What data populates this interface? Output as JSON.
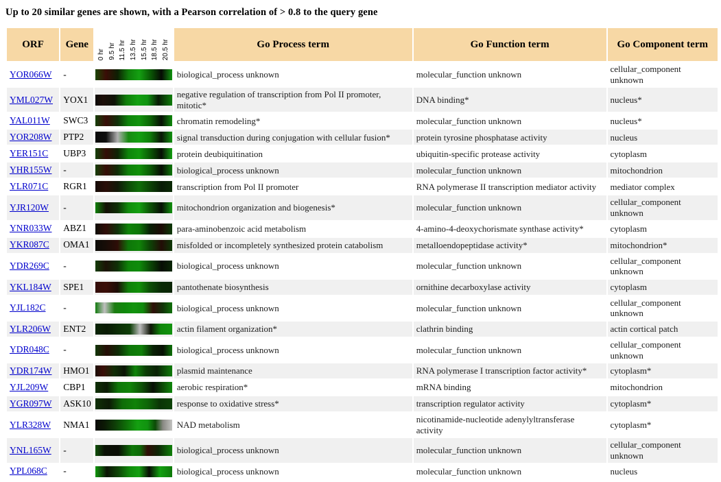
{
  "title": "Up to 20 similar genes are shown, with a Pearson correlation of > 0.8 to the query gene",
  "colors": {
    "header_bg": "#F7D8A5",
    "row_stripe_bg": "#F0F0F0",
    "link_blue": "#0000CC",
    "heatmap_missing_gray": "#BDBDBD",
    "heatmap_induced_green": "#14A011",
    "heatmap_repressed_red": "#3A0D08"
  },
  "table": {
    "headers": {
      "orf": "ORF",
      "gene": "Gene",
      "process": "Go Process term",
      "function": "Go Function term",
      "component": "Go Component term"
    },
    "time_labels": [
      "0 hr",
      "9.5 hr",
      "11.5 hr",
      "13.5 hr",
      "15.5 hr",
      "18.5 hr",
      "20.5 hr"
    ],
    "rows": [
      {
        "orf": "YOR066W",
        "gene": "-",
        "process": "biological_process unknown",
        "function": "molecular_function unknown",
        "component": "cellular_component unknown",
        "heatmap": [
          [
            0,
            "#1b4403"
          ],
          [
            14,
            "#3a0d07"
          ],
          [
            29,
            "#0d2003"
          ],
          [
            43,
            "#0f7d0a"
          ],
          [
            57,
            "#14a012"
          ],
          [
            71,
            "#0a5c05"
          ],
          [
            86,
            "#060a04"
          ],
          [
            100,
            "#11930f"
          ]
        ]
      },
      {
        "orf": "YML027W",
        "gene": "YOX1",
        "process": "negative regulation of transcription from Pol II promoter, mitotic*",
        "function": "DNA binding*",
        "component": "nucleus*",
        "heatmap": [
          [
            0,
            "#0d0a06"
          ],
          [
            10,
            "#1d0e08"
          ],
          [
            25,
            "#0e1206"
          ],
          [
            40,
            "#0f7c09"
          ],
          [
            55,
            "#13a011"
          ],
          [
            68,
            "#0f9210"
          ],
          [
            82,
            "#081a05"
          ],
          [
            100,
            "#0e7e09"
          ]
        ]
      },
      {
        "orf": "YAL011W",
        "gene": "SWC3",
        "process": "chromatin remodeling*",
        "function": "molecular_function unknown",
        "component": "nucleus*",
        "heatmap": [
          [
            0,
            "#16400a"
          ],
          [
            14,
            "#390d08"
          ],
          [
            29,
            "#11300a"
          ],
          [
            43,
            "#0e840b"
          ],
          [
            57,
            "#12940e"
          ],
          [
            71,
            "#0c6606"
          ],
          [
            86,
            "#070f05"
          ],
          [
            100,
            "#0f8a0c"
          ]
        ]
      },
      {
        "orf": "YOR208W",
        "gene": "PTP2",
        "process": "signal transduction during conjugation with cellular fusion*",
        "function": "protein tyrosine phosphatase activity",
        "component": "nucleus",
        "heatmap": [
          [
            0,
            "#090909"
          ],
          [
            14,
            "#0e0e0e"
          ],
          [
            29,
            "#b0b0b0"
          ],
          [
            43,
            "#188a12"
          ],
          [
            57,
            "#13a011"
          ],
          [
            71,
            "#0e7e0a"
          ],
          [
            86,
            "#0a1406"
          ],
          [
            100,
            "#10930e"
          ]
        ]
      },
      {
        "orf": "YER151C",
        "gene": "UBP3",
        "process": "protein deubiquitination",
        "function": "ubiquitin-specific protease activity",
        "component": "cytoplasm",
        "heatmap": [
          [
            0,
            "#15400a"
          ],
          [
            14,
            "#350d07"
          ],
          [
            29,
            "#0e2405"
          ],
          [
            43,
            "#0e850b"
          ],
          [
            57,
            "#12990e"
          ],
          [
            71,
            "#0a5a05"
          ],
          [
            86,
            "#060d04"
          ],
          [
            100,
            "#14a011"
          ]
        ]
      },
      {
        "orf": "YHR155W",
        "gene": "-",
        "process": "biological_process unknown",
        "function": "molecular_function unknown",
        "component": "mitochondrion",
        "heatmap": [
          [
            0,
            "#163e09"
          ],
          [
            14,
            "#370d07"
          ],
          [
            29,
            "#102c07"
          ],
          [
            43,
            "#0e8009"
          ],
          [
            57,
            "#119009"
          ],
          [
            71,
            "#0b5c05"
          ],
          [
            86,
            "#070c04"
          ],
          [
            100,
            "#0e7809"
          ]
        ]
      },
      {
        "orf": "YLR071C",
        "gene": "RGR1",
        "process": "transcription from Pol II promoter",
        "function": "RNA polymerase II transcription mediator activity",
        "component": "mediator complex",
        "heatmap": [
          [
            0,
            "#150b06"
          ],
          [
            14,
            "#2a0d08"
          ],
          [
            29,
            "#111808"
          ],
          [
            43,
            "#0d4a07"
          ],
          [
            57,
            "#0f6e08"
          ],
          [
            71,
            "#0c4406"
          ],
          [
            86,
            "#081a05"
          ],
          [
            100,
            "#0a2a05"
          ]
        ]
      },
      {
        "orf": "YJR120W",
        "gene": "-",
        "process": "mitochondrion organization and biogenesis*",
        "function": "molecular_function unknown",
        "component": "cellular_component unknown",
        "heatmap": [
          [
            0,
            "#108009"
          ],
          [
            14,
            "#141006"
          ],
          [
            29,
            "#0e2e06"
          ],
          [
            43,
            "#108c0c"
          ],
          [
            57,
            "#14a011"
          ],
          [
            71,
            "#0c5406"
          ],
          [
            86,
            "#070e04"
          ],
          [
            100,
            "#11930e"
          ]
        ]
      },
      {
        "orf": "YNR033W",
        "gene": "ABZ1",
        "process": "para-aminobenzoic acid metabolism",
        "function": "4-amino-4-deoxychorismate synthase activity*",
        "component": "cytoplasm",
        "heatmap": [
          [
            0,
            "#100e07"
          ],
          [
            14,
            "#300d07"
          ],
          [
            29,
            "#10320a"
          ],
          [
            43,
            "#0f8409"
          ],
          [
            57,
            "#0e7608"
          ],
          [
            71,
            "#092005"
          ],
          [
            86,
            "#1c0a05"
          ],
          [
            100,
            "#0c3a06"
          ]
        ]
      },
      {
        "orf": "YKR087C",
        "gene": "OMA1",
        "process": "misfolded or incompletely synthesized protein catabolism",
        "function": "metalloendopeptidase activity*",
        "component": "mitochondrion*",
        "heatmap": [
          [
            0,
            "#0c0c07"
          ],
          [
            14,
            "#180d07"
          ],
          [
            29,
            "#2e0d07"
          ],
          [
            43,
            "#0e7609"
          ],
          [
            57,
            "#108409"
          ],
          [
            71,
            "#0d4406"
          ],
          [
            86,
            "#220c06"
          ],
          [
            100,
            "#0d3806"
          ]
        ]
      },
      {
        "orf": "YDR269C",
        "gene": "-",
        "process": "biological_process unknown",
        "function": "molecular_function unknown",
        "component": "cellular_component unknown",
        "heatmap": [
          [
            0,
            "#143c08"
          ],
          [
            14,
            "#1c1206"
          ],
          [
            29,
            "#0f3006"
          ],
          [
            43,
            "#0f8409"
          ],
          [
            57,
            "#0f8c0a"
          ],
          [
            71,
            "#0b4a05"
          ],
          [
            86,
            "#070d04"
          ],
          [
            100,
            "#0a2605"
          ]
        ]
      },
      {
        "orf": "YKL184W",
        "gene": "SPE1",
        "process": "pantothenate biosynthesis",
        "function": "ornithine decarboxylase activity",
        "component": "cytoplasm",
        "heatmap": [
          [
            0,
            "#320d08"
          ],
          [
            14,
            "#3c0e08"
          ],
          [
            29,
            "#1c0c06"
          ],
          [
            43,
            "#0f8009"
          ],
          [
            57,
            "#119009"
          ],
          [
            71,
            "#0c4e06"
          ],
          [
            86,
            "#092805"
          ],
          [
            100,
            "#0a2405"
          ]
        ]
      },
      {
        "orf": "YJL182C",
        "gene": "-",
        "process": "biological_process unknown",
        "function": "molecular_function unknown",
        "component": "cellular_component unknown",
        "heatmap": [
          [
            0,
            "#127a0d"
          ],
          [
            12,
            "#bfbfbf"
          ],
          [
            25,
            "#1c7c12"
          ],
          [
            38,
            "#0f880b"
          ],
          [
            50,
            "#12930e"
          ],
          [
            62,
            "#108a0c"
          ],
          [
            75,
            "#2e0f08"
          ],
          [
            88,
            "#113408"
          ],
          [
            100,
            "#0f7009"
          ]
        ]
      },
      {
        "orf": "YLR206W",
        "gene": "ENT2",
        "process": "actin filament organization*",
        "function": "clathrin binding",
        "component": "actin cortical patch",
        "heatmap": [
          [
            0,
            "#0b2405"
          ],
          [
            15,
            "#091a04"
          ],
          [
            30,
            "#0c2e06"
          ],
          [
            45,
            "#0e3e07"
          ],
          [
            58,
            "#bdbdbd"
          ],
          [
            72,
            "#0e1406"
          ],
          [
            85,
            "#0f860b"
          ],
          [
            100,
            "#12930e"
          ]
        ]
      },
      {
        "orf": "YDR048C",
        "gene": "-",
        "process": "biological_process unknown",
        "function": "molecular_function unknown",
        "component": "cellular_component unknown",
        "heatmap": [
          [
            0,
            "#123608"
          ],
          [
            15,
            "#260d06"
          ],
          [
            30,
            "#0e2c06"
          ],
          [
            45,
            "#0e7609"
          ],
          [
            60,
            "#0f8009"
          ],
          [
            75,
            "#092205"
          ],
          [
            88,
            "#070f04"
          ],
          [
            100,
            "#0e7209"
          ]
        ]
      },
      {
        "orf": "YDR174W",
        "gene": "HMO1",
        "process": "plasmid maintenance",
        "function": "RNA polymerase I transcription factor activity*",
        "component": "cytoplasm*",
        "heatmap": [
          [
            0,
            "#1c0f07"
          ],
          [
            10,
            "#3a0d08"
          ],
          [
            25,
            "#0f2e06"
          ],
          [
            38,
            "#0a1205"
          ],
          [
            52,
            "#0f8409"
          ],
          [
            66,
            "#0c3c06"
          ],
          [
            80,
            "#0a2205"
          ],
          [
            100,
            "#0f7c09"
          ]
        ]
      },
      {
        "orf": "YJL209W",
        "gene": "CBP1",
        "process": "aerobic respiration*",
        "function": "mRNA binding",
        "component": "mitochondrion",
        "heatmap": [
          [
            0,
            "#103006"
          ],
          [
            15,
            "#0b1a05"
          ],
          [
            30,
            "#0e7809"
          ],
          [
            45,
            "#108409"
          ],
          [
            60,
            "#0d5206"
          ],
          [
            75,
            "#070f04"
          ],
          [
            88,
            "#0c4c06"
          ],
          [
            100,
            "#10880c"
          ]
        ]
      },
      {
        "orf": "YGR097W",
        "gene": "ASK10",
        "process": "response to oxidative stress*",
        "function": "transcription regulator activity",
        "component": "cytoplasm*",
        "heatmap": [
          [
            0,
            "#0f3007"
          ],
          [
            18,
            "#0b1a05"
          ],
          [
            35,
            "#0e6c08"
          ],
          [
            52,
            "#108209"
          ],
          [
            68,
            "#0e6608"
          ],
          [
            84,
            "#0b3406"
          ],
          [
            100,
            "#0c4206"
          ]
        ]
      },
      {
        "orf": "YLR328W",
        "gene": "NMA1",
        "process": "NAD metabolism",
        "function": "nicotinamide-nucleotide adenylyltransferase activity",
        "component": "cytoplasm*",
        "heatmap": [
          [
            0,
            "#0a0a06"
          ],
          [
            12,
            "#0c1a05"
          ],
          [
            25,
            "#0e3c07"
          ],
          [
            40,
            "#0f6e08"
          ],
          [
            55,
            "#14a011"
          ],
          [
            68,
            "#119210"
          ],
          [
            78,
            "#0c4a06"
          ],
          [
            88,
            "#8a8a84"
          ],
          [
            100,
            "#c2c2c0"
          ]
        ]
      },
      {
        "orf": "YNL165W",
        "gene": "-",
        "process": "biological_process unknown",
        "function": "molecular_function unknown",
        "component": "cellular_component unknown",
        "heatmap": [
          [
            0,
            "#11500a"
          ],
          [
            12,
            "#0a1005"
          ],
          [
            30,
            "#0a0e05"
          ],
          [
            48,
            "#0f7809"
          ],
          [
            58,
            "#0e6a08"
          ],
          [
            68,
            "#300d07"
          ],
          [
            82,
            "#0d2606"
          ],
          [
            100,
            "#0f8009"
          ]
        ]
      },
      {
        "orf": "YPL068C",
        "gene": "-",
        "process": "biological_process unknown",
        "function": "molecular_function unknown",
        "component": "nucleus",
        "heatmap": [
          [
            0,
            "#12980e"
          ],
          [
            15,
            "#0c1405"
          ],
          [
            30,
            "#0e4607"
          ],
          [
            45,
            "#108c0b"
          ],
          [
            57,
            "#14a011"
          ],
          [
            70,
            "#080c04"
          ],
          [
            84,
            "#13a010"
          ],
          [
            100,
            "#0e7809"
          ]
        ]
      }
    ]
  }
}
